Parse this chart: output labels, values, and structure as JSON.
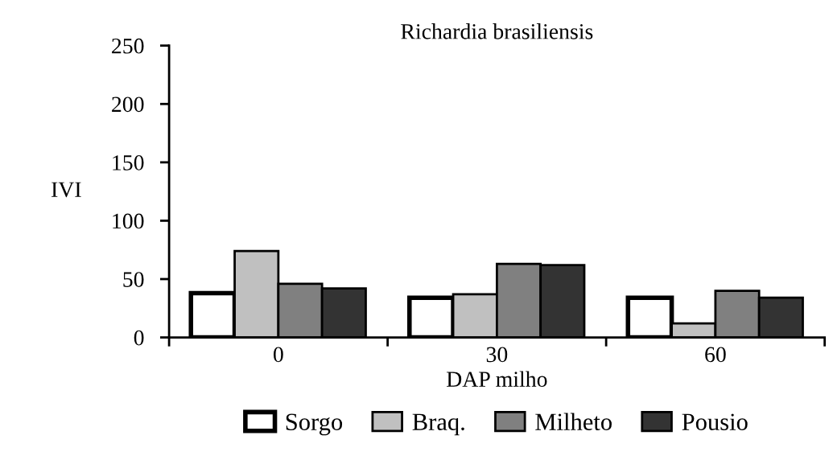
{
  "chart_data": {
    "type": "bar",
    "title": "Richardia brasiliensis",
    "xlabel": "DAP milho",
    "ylabel": "IVI",
    "categories": [
      "0",
      "30",
      "60"
    ],
    "series": [
      {
        "name": "Sorgo",
        "color": "#ffffff",
        "values": [
          38,
          34,
          34
        ]
      },
      {
        "name": "Braq.",
        "color": "#c0c0c0",
        "values": [
          74,
          37,
          12
        ]
      },
      {
        "name": "Milheto",
        "color": "#808080",
        "values": [
          46,
          63,
          40
        ]
      },
      {
        "name": "Pousio",
        "color": "#333333",
        "values": [
          42,
          62,
          34
        ]
      }
    ],
    "ylim": [
      0,
      250
    ],
    "yticks": [
      0,
      50,
      100,
      150,
      200,
      250
    ],
    "grid": false,
    "legend": "bottom"
  }
}
